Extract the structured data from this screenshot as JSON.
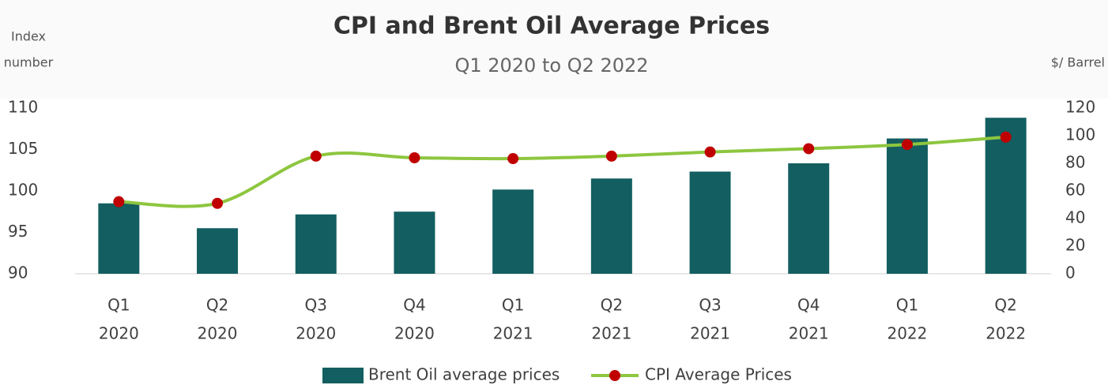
{
  "chart_data": {
    "type": "combo",
    "title": "CPI and Brent Oil Average Prices",
    "subtitle": "Q1 2020 to Q2 2022",
    "y_label": [
      "Index",
      "number"
    ],
    "y2_label": "$/ Barrel",
    "categories": [
      [
        "Q1",
        "2020"
      ],
      [
        "Q2",
        "2020"
      ],
      [
        "Q3",
        "2020"
      ],
      [
        "Q4",
        "2020"
      ],
      [
        "Q1",
        "2021"
      ],
      [
        "Q2",
        "2021"
      ],
      [
        "Q3",
        "2021"
      ],
      [
        "Q4",
        "2021"
      ],
      [
        "Q1",
        "2022"
      ],
      [
        "Q2",
        "2022"
      ]
    ],
    "ylim": [
      90,
      110
    ],
    "yticks": [
      90,
      95,
      100,
      105,
      110
    ],
    "y2lim": [
      0,
      120
    ],
    "y2ticks": [
      0,
      20,
      40,
      60,
      80,
      100,
      120
    ],
    "series": [
      {
        "name": "Brent Oil average prices",
        "type": "bar",
        "axis": "y2",
        "color": "#135e60",
        "values": [
          51,
          33,
          43,
          45,
          61,
          69,
          74,
          80,
          98,
          113
        ]
      },
      {
        "name": "CPI Average Prices",
        "type": "line",
        "axis": "y",
        "color": "#8dc63f",
        "marker_color": "#c00000",
        "values": [
          98.7,
          98.5,
          104.2,
          104.0,
          103.9,
          104.2,
          104.7,
          105.1,
          105.6,
          106.5
        ]
      }
    ],
    "legend": "bottom",
    "grid": false
  }
}
